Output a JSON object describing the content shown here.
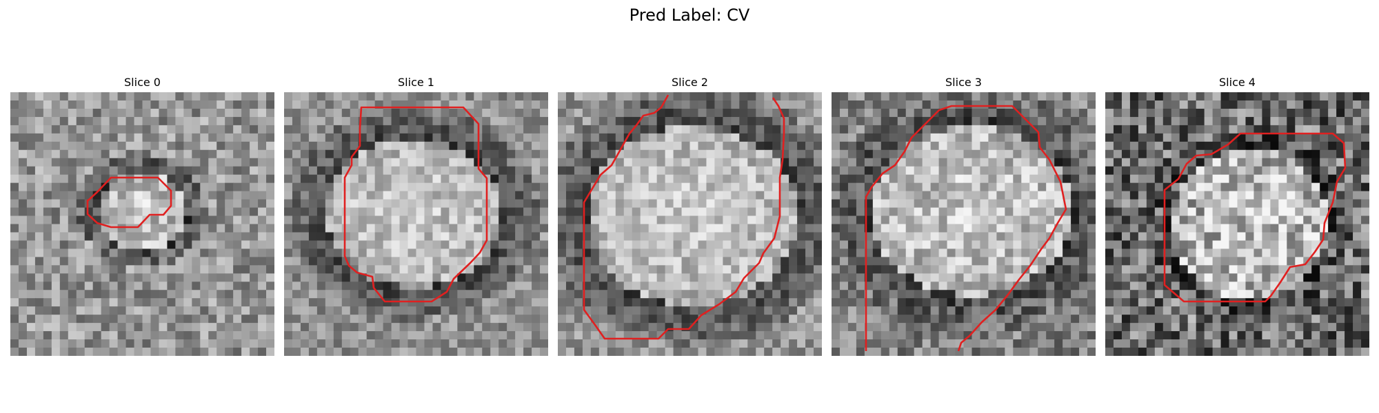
{
  "figure": {
    "title": "Pred Label: CV",
    "contour_color": "#e02020"
  },
  "slices": [
    {
      "title": "Slice 0"
    },
    {
      "title": "Slice 1"
    },
    {
      "title": "Slice 2"
    },
    {
      "title": "Slice 3"
    },
    {
      "title": "Slice 4"
    }
  ]
}
